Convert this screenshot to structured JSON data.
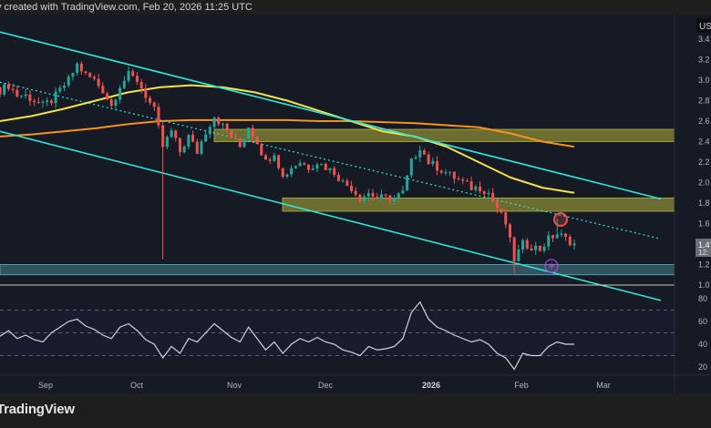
{
  "header": {
    "caption": "v created with TradingView.com, Feb 20, 2026 11:25 UTC"
  },
  "footer": {
    "logo": "TradingView"
  },
  "colors": {
    "background": "#161a25",
    "up": "#26a69a",
    "down": "#ef5350",
    "channel": "#2ee6d6",
    "ma_fast": "#f2e34c",
    "ma_slow": "#f7931a",
    "zone_yellow": "#8a8a35",
    "zone_blue": "#3f6570",
    "rsi": "#d1d4dc"
  },
  "chart_data": {
    "type": "candlestick",
    "currency_label": "US",
    "price_axis": {
      "ticks": [
        "3.4",
        "3.2",
        "3.0",
        "2.8",
        "2.6",
        "2.4",
        "2.2",
        "2.0",
        "1.8",
        "1.6",
        "1.2",
        "1.0"
      ],
      "ylim": [
        1.0,
        3.4
      ]
    },
    "last_price_label": {
      "price": "1.4",
      "countdown": "12:"
    },
    "time_axis": {
      "ticks": [
        {
          "label": "Sep",
          "bold": false
        },
        {
          "label": "Oct",
          "bold": false
        },
        {
          "label": "Nov",
          "bold": false
        },
        {
          "label": "Dec",
          "bold": false
        },
        {
          "label": "2026",
          "bold": true
        },
        {
          "label": "Feb",
          "bold": false
        },
        {
          "label": "Mar",
          "bold": false
        }
      ]
    },
    "closes": [
      2.9,
      2.95,
      2.85,
      2.85,
      2.8,
      2.75,
      2.8,
      2.9,
      3.0,
      3.15,
      3.05,
      3.0,
      2.9,
      2.75,
      2.95,
      3.05,
      3.0,
      2.85,
      2.7,
      2.35,
      2.5,
      2.3,
      2.45,
      2.3,
      2.5,
      2.65,
      2.55,
      2.45,
      2.35,
      2.55,
      2.4,
      2.2,
      2.3,
      2.05,
      2.15,
      2.2,
      2.15,
      2.2,
      2.15,
      2.1,
      2.0,
      1.95,
      1.85,
      1.9,
      1.85,
      1.85,
      1.85,
      1.9,
      2.2,
      2.35,
      2.2,
      2.15,
      2.1,
      2.05,
      2.0,
      1.95,
      1.95,
      1.9,
      1.75,
      1.6,
      1.25,
      1.4,
      1.38,
      1.35,
      1.45,
      1.5,
      1.45,
      1.4
    ],
    "notable_wicks": [
      {
        "index": 19,
        "low": 1.25
      },
      {
        "index": 60,
        "low": 1.12
      },
      {
        "index": 65,
        "high": 1.65
      }
    ],
    "ma_fast": [
      2.6,
      2.65,
      2.72,
      2.8,
      2.88,
      2.93,
      2.95,
      2.93,
      2.88,
      2.8,
      2.7,
      2.6,
      2.5,
      2.45,
      2.35,
      2.2,
      2.05,
      1.95,
      1.9
    ],
    "ma_slow": [
      2.45,
      2.47,
      2.5,
      2.53,
      2.57,
      2.6,
      2.61,
      2.61,
      2.61,
      2.61,
      2.6,
      2.6,
      2.59,
      2.58,
      2.56,
      2.54,
      2.48,
      2.4,
      2.35
    ],
    "trendlines": [
      {
        "name": "channel-upper",
        "style": "solid",
        "start": 3.47,
        "end": 1.84
      },
      {
        "name": "channel-lower",
        "style": "solid",
        "start": 2.5,
        "end": 0.85
      },
      {
        "name": "channel-mid",
        "style": "dotted",
        "start": 2.98,
        "end": 1.45
      }
    ],
    "zones": [
      {
        "name": "resistance-zone-upper",
        "low": 2.4,
        "high": 2.52,
        "kind": "yellow"
      },
      {
        "name": "resistance-zone-lower",
        "low": 1.72,
        "high": 1.85,
        "kind": "yellow"
      },
      {
        "name": "support-zone",
        "low": 1.1,
        "high": 1.2,
        "kind": "blue"
      }
    ],
    "rsi": {
      "ticks": [
        "80",
        "60",
        "40",
        "20"
      ],
      "ylim": [
        10,
        85
      ],
      "levels": [
        70,
        50,
        30
      ],
      "values": [
        47,
        52,
        45,
        48,
        44,
        42,
        50,
        55,
        60,
        62,
        56,
        53,
        48,
        45,
        55,
        58,
        52,
        44,
        40,
        28,
        38,
        32,
        45,
        42,
        50,
        58,
        52,
        46,
        42,
        55,
        45,
        35,
        42,
        32,
        40,
        45,
        42,
        46,
        42,
        40,
        35,
        33,
        30,
        38,
        35,
        36,
        38,
        45,
        68,
        77,
        62,
        55,
        52,
        48,
        45,
        42,
        44,
        40,
        32,
        28,
        18,
        32,
        30,
        30,
        38,
        42,
        40,
        40
      ]
    }
  }
}
